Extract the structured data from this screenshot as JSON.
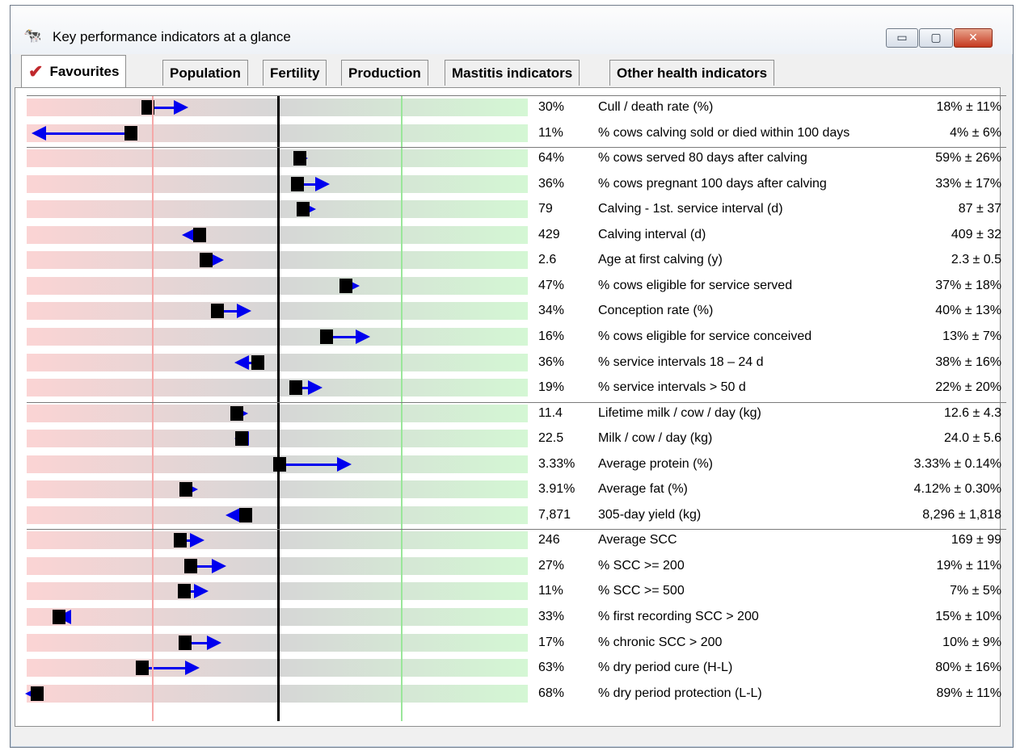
{
  "window": {
    "title": "Key performance indicators at a glance",
    "icon": "cow-icon"
  },
  "window_buttons": {
    "minimize": "▭",
    "maximize": "▢",
    "close": "✕"
  },
  "tabs": [
    {
      "label": "Favourites",
      "active": true,
      "icon": "checkmark-icon"
    },
    {
      "label": "Population"
    },
    {
      "label": "Fertility"
    },
    {
      "label": "Production"
    },
    {
      "label": "Mastitis indicators"
    },
    {
      "label": "Other health indicators"
    }
  ],
  "colors": {
    "bad": "#fbd4d4",
    "neutral": "#d6d6d6",
    "good": "#d4f7d4",
    "arrow": "#0000ee",
    "marker": "#000000"
  },
  "rows": [
    {
      "value": "30%",
      "label": "Cull / death rate (%)",
      "reference": "18% ± 11%"
    },
    {
      "value": "11%",
      "label": "% cows calving sold or died within 100 days",
      "reference": "4% ± 6%"
    },
    {
      "value": "64%",
      "label": "% cows served 80 days after calving",
      "reference": "59% ± 26%"
    },
    {
      "value": "36%",
      "label": "% cows pregnant 100 days after calving",
      "reference": "33% ± 17%"
    },
    {
      "value": "79",
      "label": "Calving - 1st. service interval (d)",
      "reference": "87 ± 37"
    },
    {
      "value": "429",
      "label": "Calving interval (d)",
      "reference": "409 ± 32"
    },
    {
      "value": "2.6",
      "label": "Age at first calving (y)",
      "reference": "2.3 ± 0.5"
    },
    {
      "value": "47%",
      "label": "% cows eligible for service served",
      "reference": "37% ± 18%"
    },
    {
      "value": "34%",
      "label": "Conception rate (%)",
      "reference": "40% ± 13%"
    },
    {
      "value": "16%",
      "label": "% cows eligible for service conceived",
      "reference": "13% ± 7%"
    },
    {
      "value": "36%",
      "label": "% service intervals 18 – 24 d",
      "reference": "38% ± 16%"
    },
    {
      "value": "19%",
      "label": "% service intervals > 50 d",
      "reference": "22% ± 20%"
    },
    {
      "value": "11.4",
      "label": "Lifetime milk / cow / day (kg)",
      "reference": "12.6 ± 4.3"
    },
    {
      "value": "22.5",
      "label": "Milk / cow / day (kg)",
      "reference": "24.0 ± 5.6"
    },
    {
      "value": "3.33%",
      "label": "Average protein (%)",
      "reference": "3.33% ± 0.14%"
    },
    {
      "value": "3.91%",
      "label": "Average fat (%)",
      "reference": "4.12% ± 0.30%"
    },
    {
      "value": "7,871",
      "label": "305-day yield (kg)",
      "reference": "8,296 ± 1,818"
    },
    {
      "value": "246",
      "label": "Average SCC",
      "reference": "169 ± 99"
    },
    {
      "value": "27%",
      "label": "% SCC >= 200",
      "reference": "19% ± 11%"
    },
    {
      "value": "11%",
      "label": "% SCC >= 500",
      "reference": "7% ± 5%"
    },
    {
      "value": "33%",
      "label": "% first recording SCC > 200",
      "reference": "15% ± 10%"
    },
    {
      "value": "17%",
      "label": "% chronic SCC > 200",
      "reference": "10% ± 9%"
    },
    {
      "value": "63%",
      "label": "% dry period cure (H-L)",
      "reference": "80% ± 16%"
    },
    {
      "value": "68%",
      "label": "% dry period protection (L-L)",
      "reference": "89% ± 11%"
    }
  ]
}
